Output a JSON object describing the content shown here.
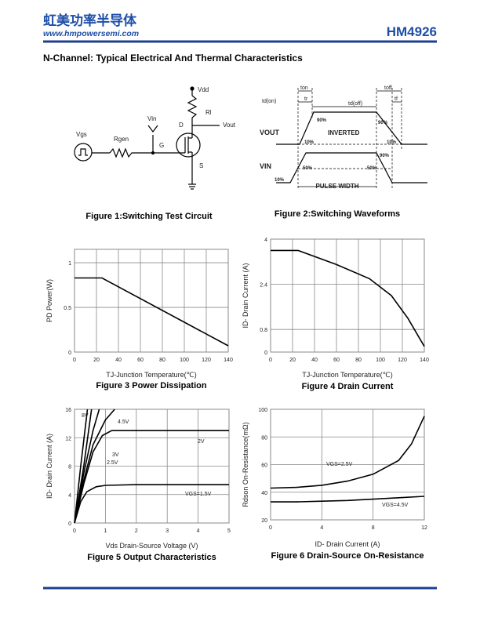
{
  "header": {
    "logo": "虹美功率半导体",
    "url": "www.hmpowersemi.com",
    "part": "HM4926"
  },
  "section_title": "N-Channel: Typical Electrical And Thermal Characteristics",
  "figure1": {
    "labels": [
      "Vdd",
      "Rl",
      "Vout",
      "Vin",
      "D",
      "Vgs",
      "Rgen",
      "G",
      "S"
    ],
    "caption": "Figure 1:Switching Test Circuit"
  },
  "figure2": {
    "labels": [
      "ton",
      "tr",
      "td(on)",
      "td(off)",
      "toff",
      "tf",
      "VOUT",
      "INVERTED",
      "90%",
      "10%",
      "90%",
      "10%",
      "VIN",
      "50%",
      "50%",
      "90%",
      "10%",
      "PULSE WIDTH"
    ],
    "caption": "Figure 2:Switching Waveforms"
  },
  "chart_data": [
    {
      "type": "line",
      "title": "Figure 3 Power Dissipation",
      "x_label": "TJ-Junction Temperature(℃)",
      "y_label": "PD Power(W)",
      "x": [
        0,
        25,
        140
      ],
      "values": [
        0.83,
        0.83,
        0.07
      ],
      "color": "#000000",
      "xlim": [
        0,
        140
      ],
      "xticks": [
        0,
        20,
        40,
        60,
        80,
        100,
        120,
        140
      ],
      "ylim": [
        0,
        1.15
      ],
      "yticks": [
        0,
        0.5,
        1
      ],
      "grid": true
    },
    {
      "type": "line",
      "title": "Figure 4 Drain Current",
      "x_label": "TJ-Junction Temperature(℃)",
      "y_label": "ID- Drain Current (A)",
      "x": [
        0,
        25,
        60,
        90,
        110,
        125,
        140
      ],
      "values": [
        3.6,
        3.6,
        3.1,
        2.6,
        2.0,
        1.2,
        0.2
      ],
      "color": "#000000",
      "xlim": [
        0,
        140
      ],
      "xticks": [
        0,
        20,
        40,
        60,
        80,
        100,
        120,
        140
      ],
      "ylim": [
        0,
        4
      ],
      "yticks": [
        0,
        0.8,
        2.4,
        4
      ],
      "grid": true
    },
    {
      "type": "line",
      "title": "Figure 5 Output Characteristics",
      "x_label": "Vds Drain-Source Voltage (V)",
      "y_label": "ID- Drain Current (A)",
      "series": [
        {
          "name": "8V",
          "color": "#000000",
          "x": [
            0,
            0.2,
            0.42
          ],
          "values": [
            0,
            8,
            16
          ]
        },
        {
          "name": "4.5V",
          "color": "#000000",
          "x": [
            0,
            0.3,
            0.55
          ],
          "values": [
            0,
            8,
            16
          ]
        },
        {
          "name": "3V",
          "color": "#000000",
          "x": [
            0,
            0.3,
            0.6,
            0.8
          ],
          "values": [
            0,
            7,
            13,
            16
          ]
        },
        {
          "name": "2.5V",
          "color": "#000000",
          "x": [
            0,
            0.3,
            0.6,
            1,
            1.3
          ],
          "values": [
            0,
            6,
            11,
            14.5,
            16
          ]
        },
        {
          "name": "2V",
          "color": "#000000",
          "x": [
            0,
            0.3,
            0.6,
            0.9,
            1.2,
            2,
            5
          ],
          "values": [
            0,
            5.5,
            10,
            12.3,
            13,
            13,
            13
          ]
        },
        {
          "name": "VGS=1.5V",
          "color": "#000000",
          "x": [
            0,
            0.2,
            0.4,
            0.7,
            1,
            2,
            5
          ],
          "values": [
            0,
            3,
            4.4,
            5.1,
            5.3,
            5.4,
            5.4
          ]
        }
      ],
      "xlim": [
        0,
        5
      ],
      "xticks": [
        0,
        1,
        2,
        3,
        4,
        5
      ],
      "ylim": [
        0,
        16
      ],
      "yticks": [
        0,
        4,
        8,
        12,
        16
      ],
      "grid": true
    },
    {
      "type": "line",
      "title": "Figure 6 Drain-Source On-Resistance",
      "x_label": "ID- Drain Current (A)",
      "y_label": "Rdson On-Resistance(mΩ)",
      "series": [
        {
          "name": "VGS=2.5V",
          "color": "#000000",
          "x": [
            0,
            2,
            4,
            6,
            8,
            10,
            11,
            12
          ],
          "values": [
            43,
            43.5,
            45,
            48,
            53,
            63,
            75,
            95
          ]
        },
        {
          "name": "VGS=4.5V",
          "color": "#000000",
          "x": [
            0,
            2,
            4,
            6,
            8,
            10,
            12
          ],
          "values": [
            33,
            33,
            33.5,
            34,
            35,
            36,
            37
          ]
        }
      ],
      "xlim": [
        0,
        12
      ],
      "xticks": [
        0,
        4,
        8,
        12
      ],
      "ylim": [
        20,
        100
      ],
      "yticks": [
        20,
        40,
        60,
        80,
        100
      ],
      "grid": true
    }
  ]
}
